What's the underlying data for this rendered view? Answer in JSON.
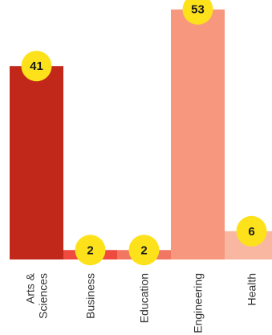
{
  "chart_data": {
    "type": "bar",
    "categories": [
      "Arts &\nSciences",
      "Business",
      "Education",
      "Engineering",
      "Health"
    ],
    "values": [
      41,
      2,
      2,
      53,
      6
    ],
    "ylim": [
      0,
      55
    ],
    "grid": false,
    "legend": "none",
    "title": "",
    "xlabel": "",
    "ylabel": "",
    "bar_colors": [
      "#c1281a",
      "#ee4a3d",
      "#f17763",
      "#f7977e",
      "#f9b7a2"
    ],
    "label_bubble_color": "#fde21b",
    "label_text_color": "#1a1a1a"
  }
}
